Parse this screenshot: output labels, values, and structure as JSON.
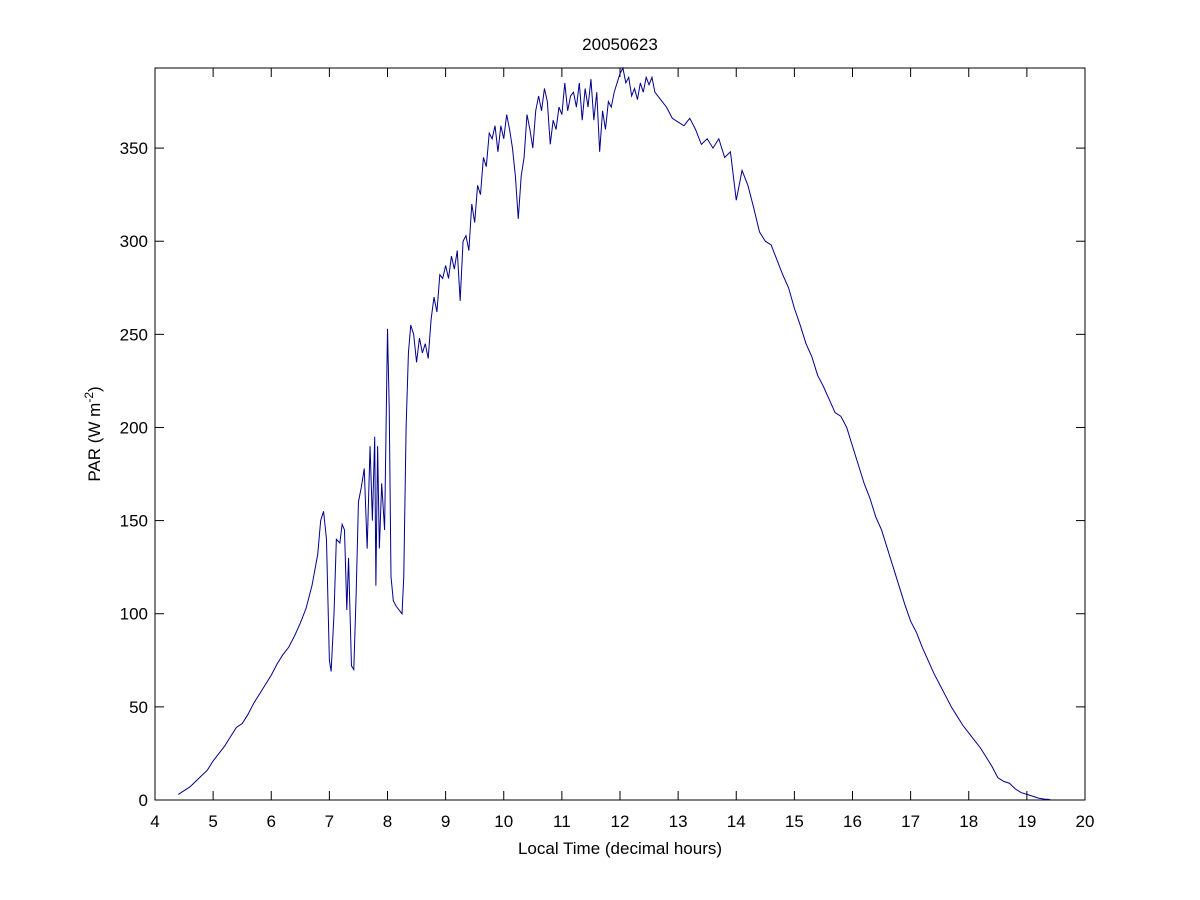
{
  "chart_data": {
    "type": "line",
    "title": "20050623",
    "xlabel": "Local Time (decimal hours)",
    "ylabel": {
      "text": "PAR (W m",
      "superscript": "-2",
      "suffix": ")"
    },
    "xlim": [
      4,
      20
    ],
    "xticks": [
      4,
      5,
      6,
      7,
      8,
      9,
      10,
      11,
      12,
      13,
      14,
      15,
      16,
      17,
      18,
      19,
      20
    ],
    "ylim": [
      0,
      393
    ],
    "yticks": [
      0,
      50,
      100,
      150,
      200,
      250,
      300,
      350
    ],
    "x": [
      4.4,
      4.5,
      4.6,
      4.7,
      4.8,
      4.9,
      5.0,
      5.1,
      5.2,
      5.3,
      5.4,
      5.5,
      5.6,
      5.7,
      5.8,
      5.9,
      6.0,
      6.1,
      6.2,
      6.3,
      6.4,
      6.5,
      6.6,
      6.7,
      6.8,
      6.85,
      6.9,
      6.95,
      7.0,
      7.03,
      7.08,
      7.12,
      7.18,
      7.22,
      7.26,
      7.3,
      7.33,
      7.38,
      7.42,
      7.46,
      7.5,
      7.55,
      7.6,
      7.65,
      7.7,
      7.74,
      7.78,
      7.8,
      7.83,
      7.86,
      7.9,
      7.95,
      8.0,
      8.03,
      8.06,
      8.1,
      8.15,
      8.2,
      8.25,
      8.28,
      8.32,
      8.36,
      8.4,
      8.45,
      8.5,
      8.55,
      8.6,
      8.65,
      8.7,
      8.75,
      8.8,
      8.85,
      8.9,
      8.95,
      9.0,
      9.05,
      9.1,
      9.15,
      9.2,
      9.25,
      9.3,
      9.35,
      9.4,
      9.45,
      9.5,
      9.55,
      9.6,
      9.65,
      9.7,
      9.75,
      9.8,
      9.85,
      9.9,
      9.95,
      10.0,
      10.05,
      10.1,
      10.15,
      10.2,
      10.25,
      10.3,
      10.35,
      10.4,
      10.45,
      10.5,
      10.55,
      10.6,
      10.65,
      10.7,
      10.75,
      10.8,
      10.85,
      10.9,
      10.95,
      11.0,
      11.05,
      11.1,
      11.15,
      11.2,
      11.25,
      11.3,
      11.35,
      11.4,
      11.45,
      11.5,
      11.55,
      11.6,
      11.65,
      11.7,
      11.75,
      11.8,
      11.85,
      11.9,
      11.95,
      12.0,
      12.05,
      12.1,
      12.15,
      12.2,
      12.25,
      12.3,
      12.35,
      12.4,
      12.45,
      12.5,
      12.55,
      12.6,
      12.7,
      12.8,
      12.9,
      13.0,
      13.1,
      13.2,
      13.3,
      13.4,
      13.5,
      13.6,
      13.7,
      13.8,
      13.9,
      14.0,
      14.1,
      14.2,
      14.3,
      14.4,
      14.5,
      14.6,
      14.7,
      14.8,
      14.9,
      15.0,
      15.1,
      15.2,
      15.3,
      15.4,
      15.5,
      15.6,
      15.7,
      15.8,
      15.9,
      16.0,
      16.1,
      16.2,
      16.3,
      16.4,
      16.5,
      16.6,
      16.7,
      16.8,
      16.9,
      17.0,
      17.1,
      17.2,
      17.3,
      17.4,
      17.5,
      17.6,
      17.7,
      17.8,
      17.9,
      18.0,
      18.1,
      18.2,
      18.3,
      18.4,
      18.5,
      18.6,
      18.7,
      18.8,
      18.9,
      19.0,
      19.1,
      19.2,
      19.3,
      19.4
    ],
    "series": [
      {
        "color": "#00008b",
        "values": [
          3,
          5,
          7,
          10,
          13,
          16,
          21,
          25,
          29,
          34,
          39,
          41,
          46,
          52,
          57,
          62,
          67,
          73,
          78,
          82,
          88,
          95,
          103,
          115,
          132,
          150,
          155,
          140,
          75,
          69,
          100,
          140,
          138,
          148,
          145,
          102,
          130,
          72,
          70,
          110,
          160,
          168,
          178,
          135,
          190,
          150,
          195,
          115,
          190,
          135,
          170,
          145,
          253,
          210,
          120,
          107,
          104,
          102,
          100,
          120,
          200,
          240,
          255,
          250,
          235,
          248,
          240,
          245,
          237,
          258,
          270,
          262,
          282,
          280,
          287,
          280,
          292,
          285,
          295,
          268,
          300,
          303,
          295,
          320,
          310,
          330,
          325,
          345,
          340,
          358,
          355,
          362,
          348,
          362,
          355,
          368,
          360,
          350,
          335,
          312,
          335,
          345,
          368,
          360,
          350,
          370,
          378,
          370,
          382,
          375,
          352,
          365,
          360,
          372,
          368,
          385,
          370,
          378,
          380,
          372,
          385,
          365,
          382,
          372,
          387,
          365,
          380,
          348,
          370,
          360,
          375,
          372,
          380,
          385,
          390,
          393,
          385,
          388,
          378,
          382,
          376,
          385,
          380,
          388,
          384,
          388,
          380,
          376,
          372,
          366,
          364,
          362,
          366,
          360,
          352,
          355,
          350,
          355,
          345,
          348,
          322,
          338,
          330,
          318,
          305,
          300,
          298,
          290,
          282,
          275,
          264,
          255,
          245,
          238,
          228,
          222,
          215,
          208,
          206,
          200,
          190,
          180,
          170,
          162,
          152,
          145,
          135,
          125,
          115,
          105,
          96,
          90,
          82,
          75,
          68,
          62,
          56,
          50,
          45,
          40,
          36,
          32,
          28,
          23,
          18,
          12,
          10,
          9,
          6,
          4,
          3,
          2,
          1,
          0.5,
          0.3
        ]
      }
    ]
  }
}
